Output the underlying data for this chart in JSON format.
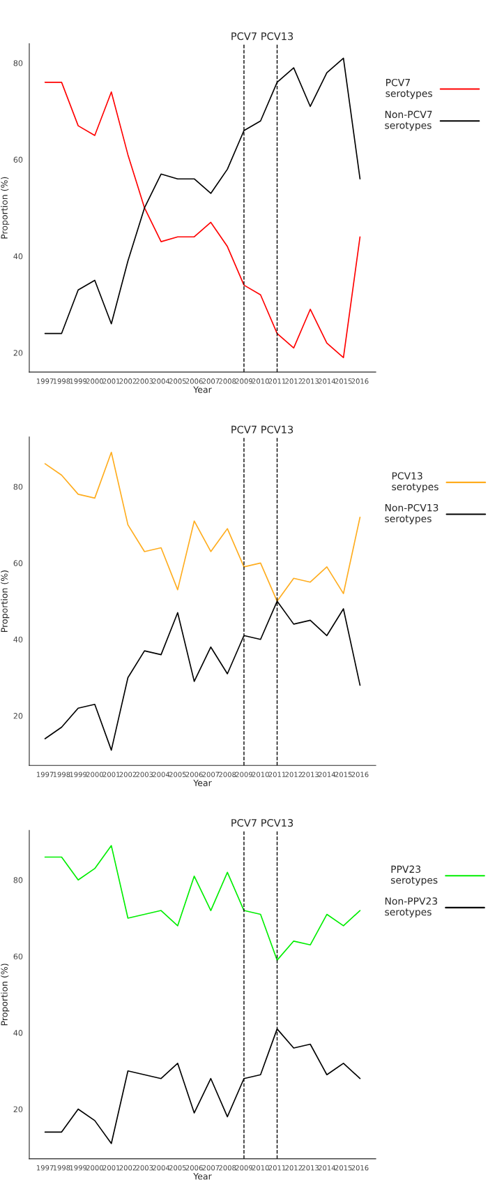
{
  "chart_data": [
    {
      "type": "line",
      "xlabel": "Year",
      "ylabel": "Proportion (%)",
      "categories": [
        "1997",
        "1998",
        "1999",
        "2000",
        "2001",
        "2002",
        "2003",
        "2004",
        "2005",
        "2006",
        "2007",
        "2008",
        "2009",
        "2010",
        "2011",
        "2012",
        "2013",
        "2014",
        "2015",
        "2016"
      ],
      "ylim": [
        16,
        84
      ],
      "yticks": [
        20,
        40,
        60,
        80
      ],
      "grid": false,
      "legend": "right",
      "line_style": "solid",
      "marker": "none",
      "series": [
        {
          "name": "PCV7\nserotypes",
          "color": "#ff0000",
          "values": [
            76,
            76,
            67,
            65,
            74,
            61,
            50,
            43,
            44,
            44,
            47,
            42,
            34,
            32,
            24,
            21,
            29,
            22,
            19,
            44
          ]
        },
        {
          "name": "Non-PCV7\nserotypes",
          "color": "#000000",
          "values": [
            24,
            24,
            33,
            35,
            26,
            39,
            50,
            57,
            56,
            56,
            53,
            58,
            66,
            68,
            76,
            79,
            71,
            78,
            81,
            56
          ]
        }
      ],
      "ref_lines": [
        {
          "axis": "x",
          "value": "2009",
          "label": "PCV7",
          "color": "#000000",
          "line_style": "dashed"
        },
        {
          "axis": "x",
          "value": "2011",
          "label": "PCV13",
          "color": "#000000",
          "line_style": "dashed"
        }
      ]
    },
    {
      "type": "line",
      "xlabel": "Year",
      "ylabel": "Proportion (%)",
      "categories": [
        "1997",
        "1998",
        "1999",
        "2000",
        "2001",
        "2002",
        "2003",
        "2004",
        "2005",
        "2006",
        "2007",
        "2008",
        "2009",
        "2010",
        "2011",
        "2012",
        "2013",
        "2014",
        "2015",
        "2016"
      ],
      "ylim": [
        7,
        93
      ],
      "yticks": [
        20,
        40,
        60,
        80
      ],
      "grid": false,
      "legend": "right",
      "line_style": "solid",
      "marker": "none",
      "series": [
        {
          "name": "PCV13\nserotypes",
          "color": "#ffad1f",
          "values": [
            86,
            83,
            78,
            77,
            89,
            70,
            63,
            64,
            53,
            71,
            63,
            69,
            59,
            60,
            50,
            56,
            55,
            59,
            52,
            72
          ]
        },
        {
          "name": "Non-PCV13\nserotypes",
          "color": "#000000",
          "values": [
            14,
            17,
            22,
            23,
            11,
            30,
            37,
            36,
            47,
            29,
            38,
            31,
            41,
            40,
            50,
            44,
            45,
            41,
            48,
            28
          ]
        }
      ],
      "ref_lines": [
        {
          "axis": "x",
          "value": "2009",
          "label": "PCV7",
          "color": "#000000",
          "line_style": "dashed"
        },
        {
          "axis": "x",
          "value": "2011",
          "label": "PCV13",
          "color": "#000000",
          "line_style": "dashed"
        }
      ]
    },
    {
      "type": "line",
      "xlabel": "Year",
      "ylabel": "Proportion (%)",
      "categories": [
        "1997",
        "1998",
        "1999",
        "2000",
        "2001",
        "2002",
        "2003",
        "2004",
        "2005",
        "2006",
        "2007",
        "2008",
        "2009",
        "2010",
        "2011",
        "2012",
        "2013",
        "2014",
        "2015",
        "2016"
      ],
      "ylim": [
        7,
        93
      ],
      "yticks": [
        20,
        40,
        60,
        80
      ],
      "grid": false,
      "legend": "right",
      "line_style": "solid",
      "marker": "none",
      "series": [
        {
          "name": "PPV23\nserotypes",
          "color": "#00ee00",
          "values": [
            86,
            86,
            80,
            83,
            89,
            70,
            71,
            72,
            68,
            81,
            72,
            82,
            72,
            71,
            59,
            64,
            63,
            71,
            68,
            72
          ]
        },
        {
          "name": "Non-PPV23\nserotypes",
          "color": "#000000",
          "values": [
            14,
            14,
            20,
            17,
            11,
            30,
            29,
            28,
            32,
            19,
            28,
            18,
            28,
            29,
            41,
            36,
            37,
            29,
            32,
            28
          ]
        }
      ],
      "ref_lines": [
        {
          "axis": "x",
          "value": "2009",
          "label": "PCV7",
          "color": "#000000",
          "line_style": "dashed"
        },
        {
          "axis": "x",
          "value": "2011",
          "label": "PCV13",
          "color": "#000000",
          "line_style": "dashed"
        }
      ]
    }
  ]
}
